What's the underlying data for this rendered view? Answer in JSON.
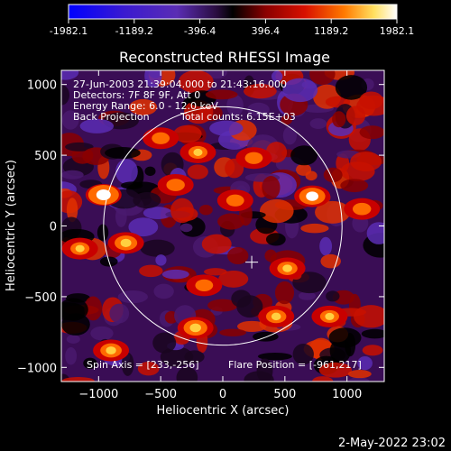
{
  "colorbar": {
    "ticks": [
      "-1982.1",
      "-1189.2",
      "-396.4",
      "396.4",
      "1189.2",
      "1982.1"
    ],
    "tick_values": [
      -1982.1,
      -1189.2,
      -396.4,
      396.4,
      1189.2,
      1982.1
    ],
    "range": [
      -1982.1,
      1982.1
    ]
  },
  "annotations": {
    "time_range": "27-Jun-2003 21:39:04.000 to 21:43:16.000",
    "detectors": "Detectors: 7F 8F 9F, Att 0",
    "energy": "Energy Range: 6.0 - 12.0 keV",
    "method": "Back Projection",
    "counts": "Total counts: 6.15E+03",
    "spin_axis": "Spin Axis = [233,-256]",
    "flare_position": "Flare Position = [-961,217]"
  },
  "footer": {
    "date": "2-May-2022 23:02"
  },
  "chart_data": {
    "type": "heatmap",
    "title": "Reconstructed RHESSI Image",
    "xlabel": "Heliocentric X (arcsec)",
    "ylabel": "Heliocentric Y (arcsec)",
    "xlim": [
      -1300,
      1300
    ],
    "ylim": [
      -1100,
      1100
    ],
    "xticks": [
      -1000,
      -500,
      0,
      500,
      1000
    ],
    "xtick_labels": [
      "−1000",
      "−500",
      "0",
      "500",
      "1000"
    ],
    "yticks": [
      -1000,
      -500,
      0,
      500,
      1000
    ],
    "ytick_labels": [
      "−1000",
      "−500",
      "0",
      "500",
      "1000"
    ],
    "solar_limb": {
      "center": [
        0,
        0
      ],
      "radius_arcsec": 960
    },
    "marker": {
      "symbol": "+",
      "x": 233,
      "y": -256
    },
    "colormap": [
      "#0000ff",
      "#5a2db4",
      "#4a1a6e",
      "#000000",
      "#c80000",
      "#ff6a00",
      "#ffffff"
    ],
    "hotspots": [
      {
        "x": -960,
        "y": 220,
        "value": 1982
      },
      {
        "x": 720,
        "y": 210,
        "value": 1600
      },
      {
        "x": -780,
        "y": -120,
        "value": 1300
      },
      {
        "x": -220,
        "y": -720,
        "value": 1400
      },
      {
        "x": 430,
        "y": -640,
        "value": 1100
      },
      {
        "x": 860,
        "y": -640,
        "value": 1000
      },
      {
        "x": -150,
        "y": -420,
        "value": 900
      },
      {
        "x": -500,
        "y": 620,
        "value": 900
      },
      {
        "x": -200,
        "y": 520,
        "value": 1000
      },
      {
        "x": 250,
        "y": 480,
        "value": 900
      },
      {
        "x": -380,
        "y": 290,
        "value": 950
      },
      {
        "x": -1150,
        "y": -160,
        "value": 1000
      },
      {
        "x": 100,
        "y": 180,
        "value": 900
      },
      {
        "x": 1120,
        "y": 120,
        "value": 950
      },
      {
        "x": -900,
        "y": -880,
        "value": 1200
      },
      {
        "x": 520,
        "y": -300,
        "value": 1100
      }
    ]
  }
}
